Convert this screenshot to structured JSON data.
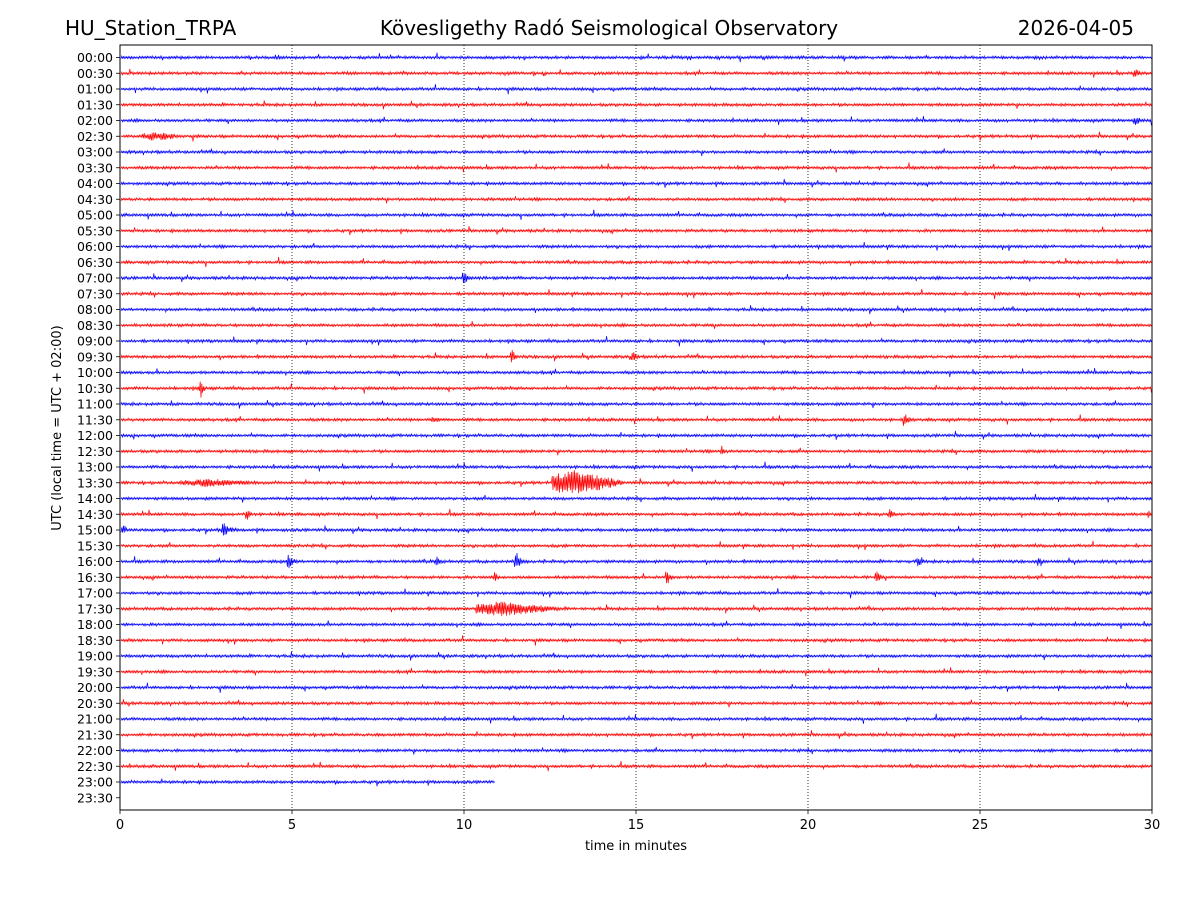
{
  "header": {
    "station": "HU_Station_TRPA",
    "observatory": "Kövesligethy Radó Seismological Observatory",
    "date": "2026-04-05"
  },
  "chart_data": {
    "type": "line",
    "subtype": "helicorder",
    "title": "Kövesligethy Radó Seismological Observatory",
    "xlabel": "time in minutes",
    "ylabel": "UTC (local time = UTC + 02:00)",
    "xlim": [
      0,
      30
    ],
    "x_ticks": [
      0,
      5,
      10,
      15,
      20,
      25,
      30
    ],
    "x_gridlines": [
      5,
      10,
      15,
      20,
      25
    ],
    "row_interval_minutes": 30,
    "row_labels": [
      "00:00",
      "00:30",
      "01:00",
      "01:30",
      "02:00",
      "02:30",
      "03:00",
      "03:30",
      "04:00",
      "04:30",
      "05:00",
      "05:30",
      "06:00",
      "06:30",
      "07:00",
      "07:30",
      "08:00",
      "08:30",
      "09:00",
      "09:30",
      "10:00",
      "10:30",
      "11:00",
      "11:30",
      "12:00",
      "12:30",
      "13:00",
      "13:30",
      "14:00",
      "14:30",
      "15:00",
      "15:30",
      "16:00",
      "16:30",
      "17:00",
      "17:30",
      "18:00",
      "18:30",
      "19:00",
      "19:30",
      "20:00",
      "20:30",
      "21:00",
      "21:30",
      "22:00",
      "22:30",
      "23:00",
      "23:30"
    ],
    "series_colors": [
      "#0000ff",
      "#ff0000"
    ],
    "last_trace": {
      "row": "23:00",
      "end_minute": 10.9
    },
    "events": [
      {
        "row": "02:30",
        "minute": 0.7,
        "duration": 1.2,
        "amplitude": 0.35
      },
      {
        "row": "07:00",
        "minute": 10.0,
        "duration": 0.3,
        "amplitude": 0.55
      },
      {
        "row": "09:30",
        "minute": 11.4,
        "duration": 0.3,
        "amplitude": 0.5
      },
      {
        "row": "09:30",
        "minute": 14.9,
        "duration": 0.3,
        "amplitude": 0.5
      },
      {
        "row": "10:30",
        "minute": 2.35,
        "duration": 0.2,
        "amplitude": 0.7
      },
      {
        "row": "11:30",
        "minute": 22.8,
        "duration": 0.3,
        "amplitude": 0.55
      },
      {
        "row": "12:30",
        "minute": 17.5,
        "duration": 0.25,
        "amplitude": 0.45
      },
      {
        "row": "13:30",
        "minute": 1.8,
        "duration": 2.5,
        "amplitude": 0.3
      },
      {
        "row": "13:30",
        "minute": 12.6,
        "duration": 2.0,
        "amplitude": 0.95
      },
      {
        "row": "14:30",
        "minute": 3.7,
        "duration": 0.2,
        "amplitude": 0.55
      },
      {
        "row": "14:30",
        "minute": 22.4,
        "duration": 0.2,
        "amplitude": 0.55
      },
      {
        "row": "15:00",
        "minute": 0.1,
        "duration": 0.2,
        "amplitude": 0.55
      },
      {
        "row": "15:00",
        "minute": 3.0,
        "duration": 0.6,
        "amplitude": 0.55
      },
      {
        "row": "16:00",
        "minute": 4.9,
        "duration": 0.4,
        "amplitude": 0.55
      },
      {
        "row": "16:00",
        "minute": 9.2,
        "duration": 0.3,
        "amplitude": 0.4
      },
      {
        "row": "16:00",
        "minute": 11.5,
        "duration": 0.3,
        "amplitude": 0.85
      },
      {
        "row": "16:00",
        "minute": 23.2,
        "duration": 0.3,
        "amplitude": 0.5
      },
      {
        "row": "16:00",
        "minute": 26.7,
        "duration": 0.3,
        "amplitude": 0.4
      },
      {
        "row": "16:30",
        "minute": 10.9,
        "duration": 0.2,
        "amplitude": 0.45
      },
      {
        "row": "16:30",
        "minute": 15.9,
        "duration": 0.3,
        "amplitude": 0.6
      },
      {
        "row": "16:30",
        "minute": 22.0,
        "duration": 0.3,
        "amplitude": 0.45
      },
      {
        "row": "17:30",
        "minute": 10.4,
        "duration": 2.5,
        "amplitude": 0.55
      },
      {
        "row": "11:30",
        "minute": 9.1,
        "duration": 0.6,
        "amplitude": 0.3
      },
      {
        "row": "00:30",
        "minute": 29.5,
        "duration": 0.5,
        "amplitude": 0.35
      },
      {
        "row": "02:00",
        "minute": 29.5,
        "duration": 0.5,
        "amplitude": 0.35
      },
      {
        "row": "14:30",
        "minute": 29.9,
        "duration": 0.1,
        "amplitude": 0.5
      }
    ]
  }
}
